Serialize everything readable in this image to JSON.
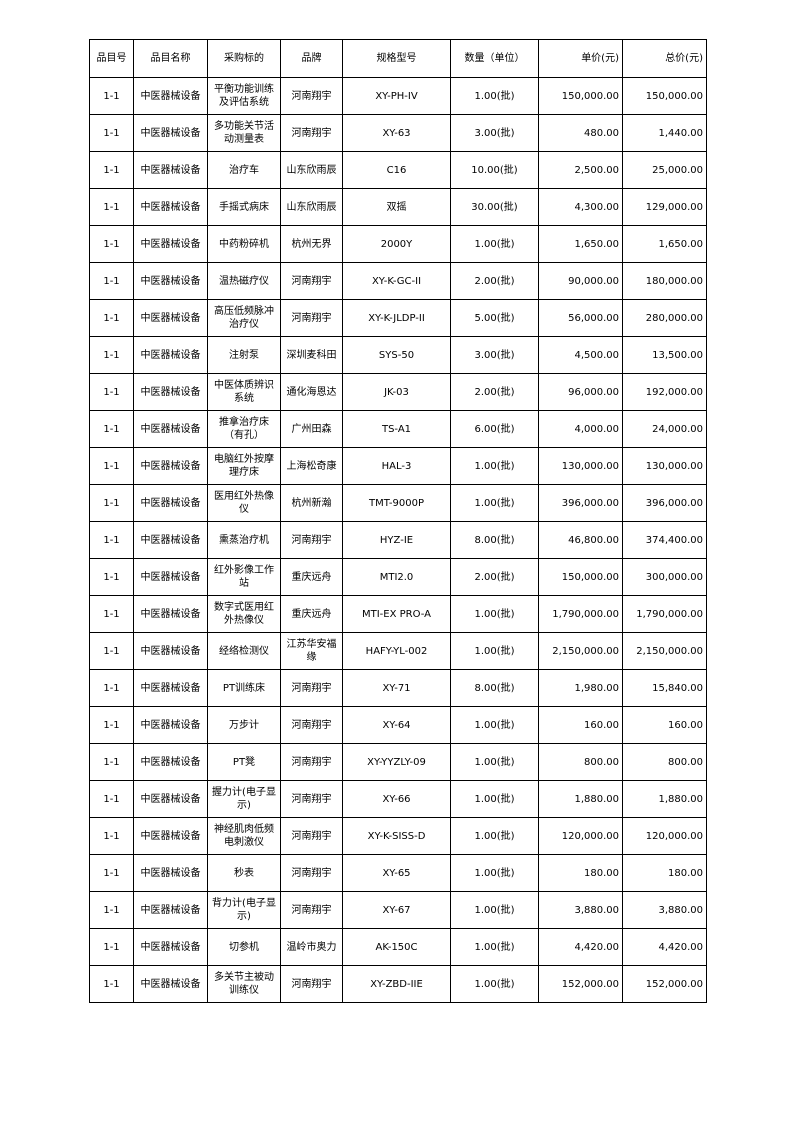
{
  "table": {
    "headers": [
      "品目号",
      "品目名称",
      "采购标的",
      "品牌",
      "规格型号",
      "数量（单位）",
      "单价(元)",
      "总价(元)"
    ],
    "rows": [
      [
        "1-1",
        "中医器械设备",
        "平衡功能训练及评估系统",
        "河南翔宇",
        "XY-PH-IV",
        "1.00(批)",
        "150,000.00",
        "150,000.00"
      ],
      [
        "1-1",
        "中医器械设备",
        "多功能关节活动测量表",
        "河南翔宇",
        "XY-63",
        "3.00(批)",
        "480.00",
        "1,440.00"
      ],
      [
        "1-1",
        "中医器械设备",
        "治疗车",
        "山东欣雨辰",
        "C16",
        "10.00(批)",
        "2,500.00",
        "25,000.00"
      ],
      [
        "1-1",
        "中医器械设备",
        "手摇式病床",
        "山东欣雨辰",
        "双摇",
        "30.00(批)",
        "4,300.00",
        "129,000.00"
      ],
      [
        "1-1",
        "中医器械设备",
        "中药粉碎机",
        "杭州无界",
        "2000Y",
        "1.00(批)",
        "1,650.00",
        "1,650.00"
      ],
      [
        "1-1",
        "中医器械设备",
        "温热磁疗仪",
        "河南翔宇",
        "XY-K-GC-II",
        "2.00(批)",
        "90,000.00",
        "180,000.00"
      ],
      [
        "1-1",
        "中医器械设备",
        "高压低频脉冲治疗仪",
        "河南翔宇",
        "XY-K-JLDP-II",
        "5.00(批)",
        "56,000.00",
        "280,000.00"
      ],
      [
        "1-1",
        "中医器械设备",
        "注射泵",
        "深圳麦科田",
        "SYS-50",
        "3.00(批)",
        "4,500.00",
        "13,500.00"
      ],
      [
        "1-1",
        "中医器械设备",
        "中医体质辨识系统",
        "通化海恩达",
        "JK-03",
        "2.00(批)",
        "96,000.00",
        "192,000.00"
      ],
      [
        "1-1",
        "中医器械设备",
        "推拿治疗床（有孔）",
        "广州田森",
        "TS-A1",
        "6.00(批)",
        "4,000.00",
        "24,000.00"
      ],
      [
        "1-1",
        "中医器械设备",
        "电脑红外按摩理疗床",
        "上海松奇康",
        "HAL-3",
        "1.00(批)",
        "130,000.00",
        "130,000.00"
      ],
      [
        "1-1",
        "中医器械设备",
        "医用红外热像仪",
        "杭州新瀚",
        "TMT-9000P",
        "1.00(批)",
        "396,000.00",
        "396,000.00"
      ],
      [
        "1-1",
        "中医器械设备",
        "熏蒸治疗机",
        "河南翔宇",
        "HYZ-IE",
        "8.00(批)",
        "46,800.00",
        "374,400.00"
      ],
      [
        "1-1",
        "中医器械设备",
        "红外影像工作站",
        "重庆远舟",
        "MTI2.0",
        "2.00(批)",
        "150,000.00",
        "300,000.00"
      ],
      [
        "1-1",
        "中医器械设备",
        "数字式医用红外热像仪",
        "重庆远舟",
        "MTI-EX PRO-A",
        "1.00(批)",
        "1,790,000.00",
        "1,790,000.00"
      ],
      [
        "1-1",
        "中医器械设备",
        "经络检测仪",
        "江苏华安福缘",
        "HAFY-YL-002",
        "1.00(批)",
        "2,150,000.00",
        "2,150,000.00"
      ],
      [
        "1-1",
        "中医器械设备",
        "PT训练床",
        "河南翔宇",
        "XY-71",
        "8.00(批)",
        "1,980.00",
        "15,840.00"
      ],
      [
        "1-1",
        "中医器械设备",
        "万步计",
        "河南翔宇",
        "XY-64",
        "1.00(批)",
        "160.00",
        "160.00"
      ],
      [
        "1-1",
        "中医器械设备",
        "PT凳",
        "河南翔宇",
        "XY-YYZLY-09",
        "1.00(批)",
        "800.00",
        "800.00"
      ],
      [
        "1-1",
        "中医器械设备",
        "握力计(电子显示)",
        "河南翔宇",
        "XY-66",
        "1.00(批)",
        "1,880.00",
        "1,880.00"
      ],
      [
        "1-1",
        "中医器械设备",
        "神经肌肉低频电刺激仪",
        "河南翔宇",
        "XY-K-SISS-D",
        "1.00(批)",
        "120,000.00",
        "120,000.00"
      ],
      [
        "1-1",
        "中医器械设备",
        "秒表",
        "河南翔宇",
        "XY-65",
        "1.00(批)",
        "180.00",
        "180.00"
      ],
      [
        "1-1",
        "中医器械设备",
        "背力计(电子显示)",
        "河南翔宇",
        "XY-67",
        "1.00(批)",
        "3,880.00",
        "3,880.00"
      ],
      [
        "1-1",
        "中医器械设备",
        "切参机",
        "温岭市奥力",
        "AK-150C",
        "1.00(批)",
        "4,420.00",
        "4,420.00"
      ],
      [
        "1-1",
        "中医器械设备",
        "多关节主被动训练仪",
        "河南翔宇",
        "XY-ZBD-IIE",
        "1.00(批)",
        "152,000.00",
        "152,000.00"
      ]
    ]
  }
}
